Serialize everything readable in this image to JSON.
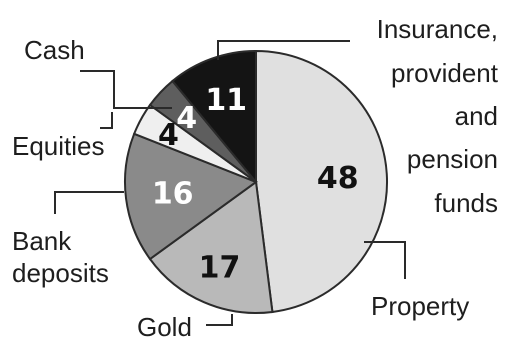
{
  "chart_data": {
    "type": "pie",
    "title": "",
    "slices": [
      {
        "name": "Property",
        "value": 48,
        "color": "#e0e0e0",
        "value_color": "#111111"
      },
      {
        "name": "Gold",
        "value": 17,
        "color": "#b9b9b9",
        "value_color": "#111111"
      },
      {
        "name": "Bank deposits",
        "value": 16,
        "color": "#8a8a8a",
        "value_color": "#ffffff"
      },
      {
        "name": "Equities",
        "value": 4,
        "color": "#efefef",
        "value_color": "#111111"
      },
      {
        "name": "Cash",
        "value": 4,
        "color": "#5e5e5e",
        "value_color": "#ffffff"
      },
      {
        "name": "Insurance, provident and pension funds",
        "value": 11,
        "color": "#141414",
        "value_color": "#ffffff"
      }
    ],
    "labels": {
      "property": "Property",
      "gold": "Gold",
      "bank_line1": "Bank",
      "bank_line2": "deposits",
      "equities": "Equities",
      "cash": "Cash",
      "ins_line1": "Insurance,",
      "ins_line2": "provident",
      "ins_line3": "and",
      "ins_line4": "pension",
      "ins_line5": "funds"
    }
  }
}
